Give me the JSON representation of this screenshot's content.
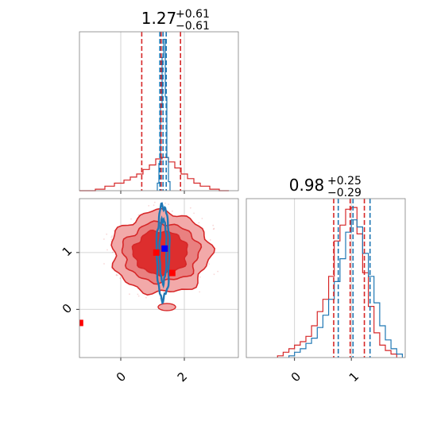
{
  "chart_data": {
    "type": "corner",
    "colors": {
      "red": "#d62728",
      "blue": "#1f77b4",
      "grid": "#c8c8c8",
      "frame": "#808080"
    },
    "series": [
      {
        "name": "",
        "color": "#d62728"
      },
      {
        "name": "",
        "color": "#1f77b4"
      }
    ],
    "panels": [
      {
        "id": "hist-param-1",
        "type": "histogram",
        "title": {
          "value": "1.27",
          "plus": "+0.61",
          "minus": "−0.61"
        },
        "xlim": [
          -1.3,
          3.7
        ],
        "grid": true,
        "red_quantiles": [
          0.66,
          1.27,
          1.88
        ],
        "blue_quantiles": [
          1.23,
          1.33,
          1.43
        ],
        "red_hist": {
          "edges": [
            -1.3,
            -0.8,
            -0.5,
            -0.2,
            0.1,
            0.3,
            0.5,
            0.7,
            0.9,
            1.1,
            1.3,
            1.5,
            1.7,
            1.9,
            2.1,
            2.3,
            2.5,
            2.8,
            3.1,
            3.4
          ],
          "density": [
            0.0,
            0.01,
            0.03,
            0.05,
            0.07,
            0.09,
            0.11,
            0.14,
            0.17,
            0.21,
            0.22,
            0.19,
            0.15,
            0.11,
            0.08,
            0.05,
            0.03,
            0.01,
            0.0
          ]
        },
        "blue_hist": {
          "edges": [
            1.15,
            1.2,
            1.25,
            1.3,
            1.35,
            1.4,
            1.45,
            1.5,
            1.55
          ],
          "density": [
            0.05,
            0.18,
            0.55,
            0.88,
            1.0,
            0.62,
            0.22,
            0.06
          ]
        },
        "ylim": [
          0,
          1.05
        ]
      },
      {
        "id": "hist-param-2",
        "type": "histogram",
        "title": {
          "value": "0.98",
          "plus": "+0.25",
          "minus": "−0.29"
        },
        "xlim": [
          -0.85,
          1.95
        ],
        "xticks": [
          0,
          1
        ],
        "xtick_labels": [
          "0",
          "1"
        ],
        "grid": true,
        "red_quantiles": [
          0.69,
          0.98,
          1.23
        ],
        "blue_quantiles": [
          0.77,
          1.03,
          1.33
        ],
        "red_hist": {
          "edges": [
            -0.3,
            -0.2,
            -0.1,
            0.0,
            0.1,
            0.2,
            0.3,
            0.4,
            0.5,
            0.6,
            0.7,
            0.8,
            0.9,
            1.0,
            1.1,
            1.2,
            1.3,
            1.4,
            1.5,
            1.6,
            1.7,
            1.8
          ],
          "density": [
            0.01,
            0.03,
            0.05,
            0.07,
            0.09,
            0.12,
            0.18,
            0.26,
            0.33,
            0.46,
            0.66,
            0.75,
            0.84,
            0.85,
            0.7,
            0.48,
            0.29,
            0.14,
            0.07,
            0.04,
            0.02
          ]
        },
        "blue_hist": {
          "edges": [
            -0.1,
            0.0,
            0.1,
            0.2,
            0.3,
            0.4,
            0.5,
            0.6,
            0.7,
            0.8,
            0.9,
            1.0,
            1.1,
            1.2,
            1.3,
            1.4,
            1.5,
            1.6,
            1.7,
            1.8,
            1.9
          ],
          "density": [
            0.01,
            0.03,
            0.05,
            0.08,
            0.11,
            0.17,
            0.24,
            0.33,
            0.43,
            0.56,
            0.71,
            0.78,
            0.74,
            0.59,
            0.46,
            0.31,
            0.18,
            0.1,
            0.05,
            0.02
          ]
        },
        "ylim": [
          0,
          0.9
        ]
      },
      {
        "id": "joint-2d",
        "type": "contour",
        "xlim": [
          -1.3,
          3.7
        ],
        "ylim": [
          -0.85,
          1.95
        ],
        "xticks": [
          0,
          2
        ],
        "xtick_labels": [
          "0",
          "2"
        ],
        "yticks": [
          0,
          1
        ],
        "ytick_labels": [
          "0",
          "1"
        ],
        "grid": true,
        "red_contours": [
          {
            "level": "outer",
            "cx": 1.27,
            "cy": 1.0,
            "rx": 1.55,
            "ry": 0.72
          },
          {
            "level": "middle",
            "cx": 1.27,
            "cy": 1.0,
            "rx": 1.2,
            "ry": 0.52
          },
          {
            "level": "inner",
            "cx": 1.25,
            "cy": 1.0,
            "rx": 0.85,
            "ry": 0.38
          }
        ],
        "blue_contours": [
          {
            "level": "outer",
            "cx": 1.33,
            "cy": 1.0,
            "rx": 0.2,
            "ry": 0.82
          },
          {
            "level": "inner",
            "cx": 1.33,
            "cy": 1.03,
            "rx": 0.11,
            "ry": 0.56
          }
        ],
        "red_markers": [
          {
            "x": 1.12,
            "y": 1.0
          },
          {
            "x": 1.62,
            "y": 0.64
          },
          {
            "x": -1.28,
            "y": -0.24
          }
        ],
        "blue_markers": [
          {
            "x": 1.38,
            "y": 1.07
          }
        ]
      }
    ]
  }
}
